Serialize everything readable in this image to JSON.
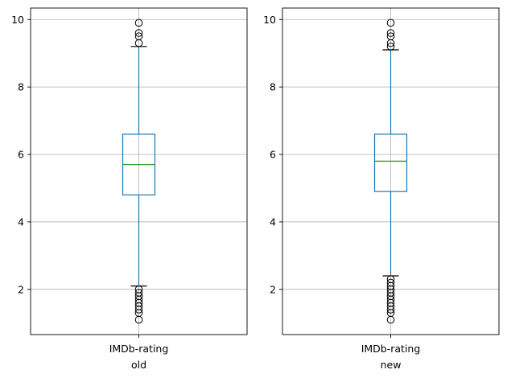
{
  "chart_data": [
    {
      "type": "box",
      "category": "IMDb-rating",
      "xlabel": "old",
      "ylabel": "",
      "ylim": [
        0.66,
        10.34
      ],
      "yticks": [
        2,
        4,
        6,
        8,
        10
      ],
      "grid": true,
      "series": [
        {
          "whisker_low": 2.1,
          "q1": 4.8,
          "median": 5.7,
          "q3": 6.6,
          "whisker_high": 9.2,
          "outliers": [
            9.3,
            9.5,
            9.6,
            9.9,
            2.0,
            1.9,
            1.8,
            1.7,
            1.6,
            1.5,
            1.4,
            1.3,
            1.1
          ]
        }
      ]
    },
    {
      "type": "box",
      "category": "IMDb-rating",
      "xlabel": "new",
      "ylabel": "",
      "ylim": [
        0.66,
        10.34
      ],
      "yticks": [
        2,
        4,
        6,
        8,
        10
      ],
      "grid": true,
      "series": [
        {
          "whisker_low": 2.4,
          "q1": 4.9,
          "median": 5.8,
          "q3": 6.6,
          "whisker_high": 9.1,
          "outliers": [
            9.2,
            9.3,
            9.5,
            9.6,
            9.9,
            2.3,
            2.2,
            2.1,
            2.0,
            1.9,
            1.8,
            1.7,
            1.6,
            1.5,
            1.4,
            1.3,
            1.1
          ]
        }
      ]
    }
  ],
  "colors": {
    "box": "#1f77b4",
    "median": "#2ca02c",
    "grid": "#b0b0b0",
    "axes": "#000000"
  }
}
